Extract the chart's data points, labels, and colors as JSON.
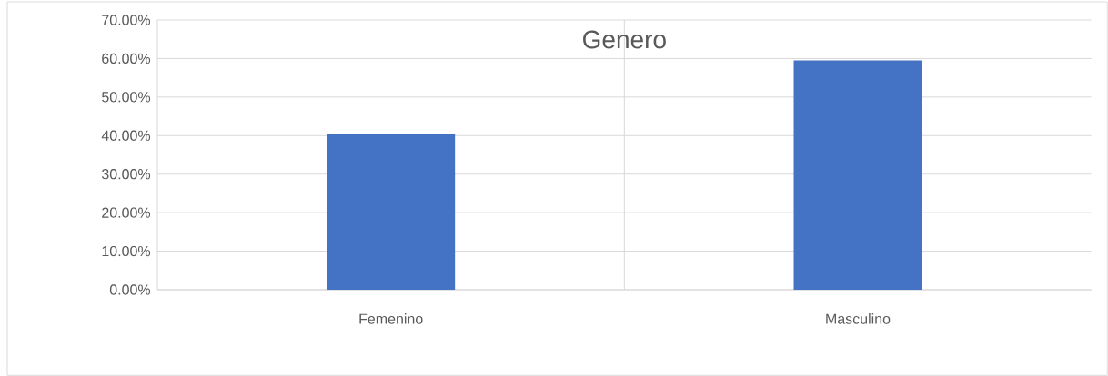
{
  "chart_data": {
    "type": "bar",
    "title": "Genero",
    "categories": [
      "Femenino",
      "Masculino"
    ],
    "values": [
      40.5,
      59.5
    ],
    "color": "#4472c4",
    "ylim": [
      0,
      70
    ],
    "yticks": [
      {
        "value": 0,
        "label": "0.00%"
      },
      {
        "value": 10,
        "label": "10.00%"
      },
      {
        "value": 20,
        "label": "20.00%"
      },
      {
        "value": 30,
        "label": "30.00%"
      },
      {
        "value": 40,
        "label": "40.00%"
      },
      {
        "value": 50,
        "label": "50.00%"
      },
      {
        "value": 60,
        "label": "60.00%"
      },
      {
        "value": 70,
        "label": "70.00%"
      }
    ],
    "grid": true
  }
}
